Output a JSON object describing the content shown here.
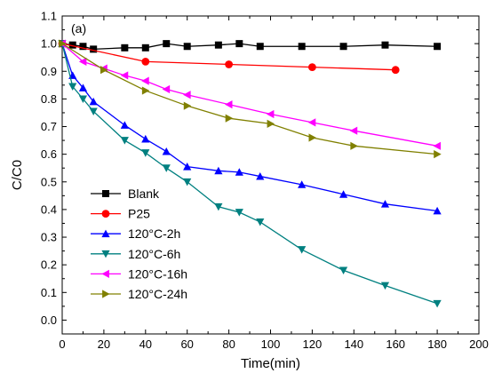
{
  "chart_data": {
    "type": "line",
    "panel_label": "(a)",
    "title": "",
    "xlabel": "Time(min)",
    "ylabel": "C/C0",
    "xlim": [
      0,
      200
    ],
    "ylim": [
      -0.05,
      1.1
    ],
    "xticks": [
      0,
      20,
      40,
      60,
      80,
      100,
      120,
      140,
      160,
      180,
      200
    ],
    "yticks": [
      0.0,
      0.1,
      0.2,
      0.3,
      0.4,
      0.5,
      0.6,
      0.7,
      0.8,
      0.9,
      1.0,
      1.1
    ],
    "grid": false,
    "legend_position": "bottom-left",
    "series": [
      {
        "name": "Blank",
        "color": "#000000",
        "marker": "square",
        "x": [
          0,
          5,
          10,
          15,
          30,
          40,
          50,
          60,
          75,
          85,
          95,
          115,
          135,
          155,
          180
        ],
        "y": [
          1.0,
          0.995,
          0.99,
          0.98,
          0.985,
          0.985,
          1.0,
          0.99,
          0.995,
          1.0,
          0.99,
          0.99,
          0.99,
          0.995,
          0.99
        ]
      },
      {
        "name": "P25",
        "color": "#ff0000",
        "marker": "circle",
        "x": [
          0,
          40,
          80,
          120,
          160
        ],
        "y": [
          1.0,
          0.935,
          0.925,
          0.915,
          0.905
        ]
      },
      {
        "name": "120°C-2h",
        "color": "#0000ff",
        "marker": "triangle-up",
        "x": [
          0,
          5,
          10,
          15,
          30,
          40,
          50,
          60,
          75,
          85,
          95,
          115,
          135,
          155,
          180
        ],
        "y": [
          1.0,
          0.885,
          0.84,
          0.79,
          0.705,
          0.655,
          0.61,
          0.555,
          0.54,
          0.535,
          0.52,
          0.49,
          0.455,
          0.42,
          0.395
        ]
      },
      {
        "name": "120°C-6h",
        "color": "#008080",
        "marker": "triangle-down",
        "x": [
          0,
          5,
          10,
          15,
          30,
          40,
          50,
          60,
          75,
          85,
          95,
          115,
          135,
          155,
          180
        ],
        "y": [
          1.0,
          0.845,
          0.8,
          0.755,
          0.65,
          0.605,
          0.55,
          0.5,
          0.41,
          0.39,
          0.355,
          0.255,
          0.18,
          0.125,
          0.06
        ]
      },
      {
        "name": "120°C-16h",
        "color": "#ff00ff",
        "marker": "triangle-left",
        "x": [
          0,
          10,
          20,
          30,
          40,
          50,
          60,
          80,
          100,
          120,
          140,
          180
        ],
        "y": [
          1.0,
          0.935,
          0.91,
          0.885,
          0.865,
          0.835,
          0.815,
          0.78,
          0.745,
          0.715,
          0.685,
          0.63
        ]
      },
      {
        "name": "120°C-24h",
        "color": "#808000",
        "marker": "triangle-right",
        "x": [
          0,
          20,
          40,
          60,
          80,
          100,
          120,
          140,
          180
        ],
        "y": [
          1.0,
          0.905,
          0.83,
          0.775,
          0.73,
          0.71,
          0.66,
          0.63,
          0.6
        ]
      }
    ]
  }
}
